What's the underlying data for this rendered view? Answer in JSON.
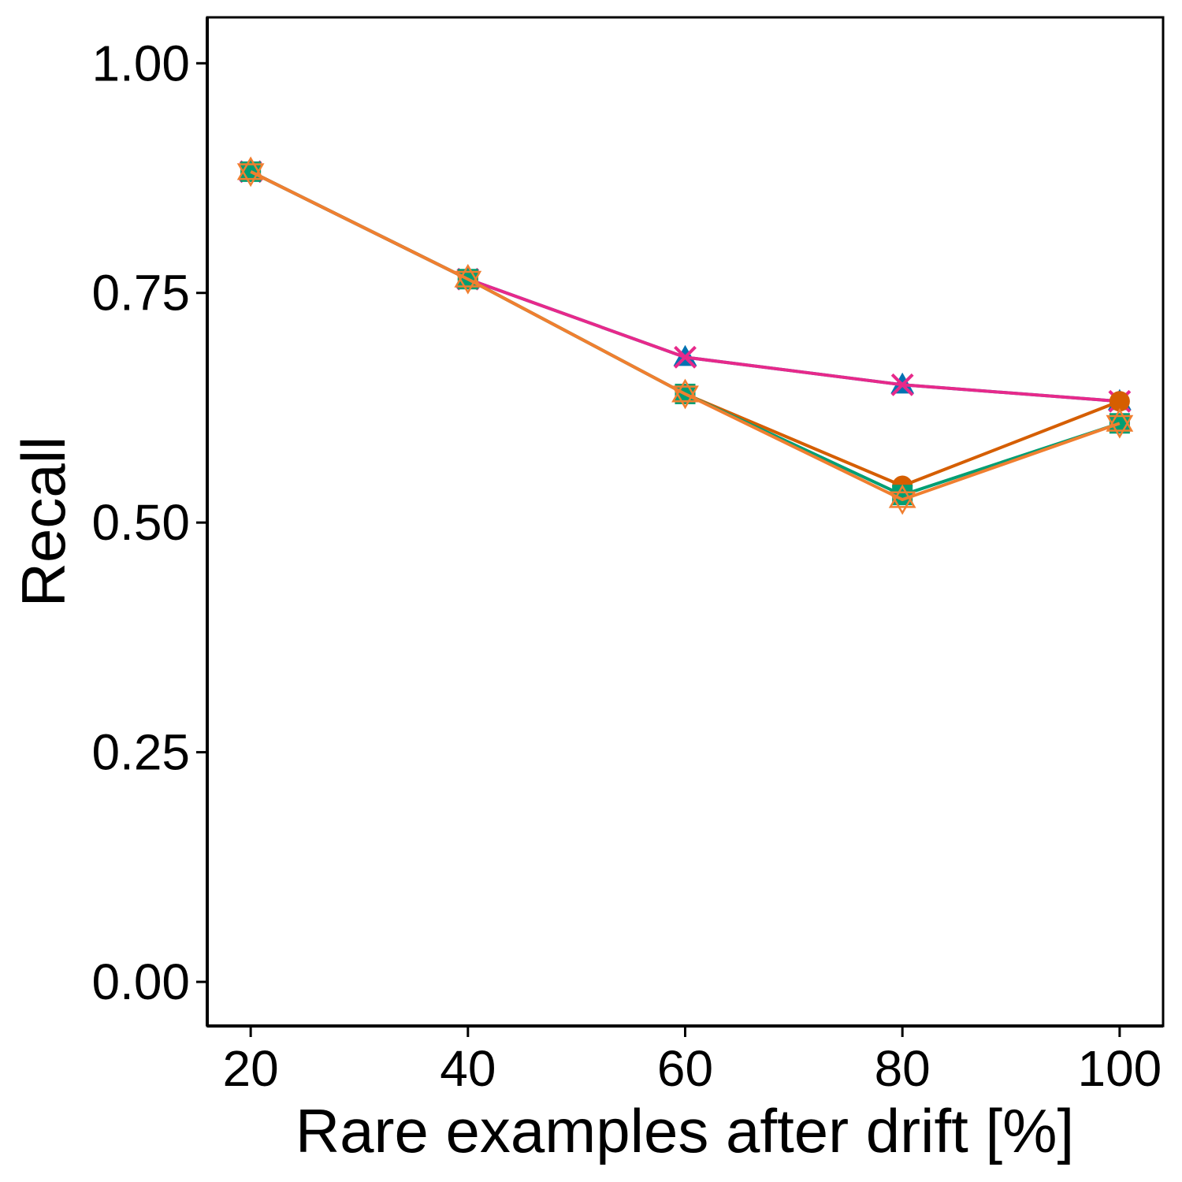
{
  "chart_data": {
    "type": "line",
    "xlabel": "Rare examples after drift [%]",
    "ylabel": "Recall",
    "x": [
      20,
      40,
      60,
      80,
      100
    ],
    "xticks": [
      "20",
      "40",
      "60",
      "80",
      "100"
    ],
    "yticks": [
      "0.00",
      "0.25",
      "0.50",
      "0.75",
      "1.00"
    ],
    "xlim": [
      16,
      104
    ],
    "ylim": [
      -0.048,
      1.05
    ],
    "grid": false,
    "series": [
      {
        "color": "#0072B2",
        "marker": "triangle",
        "values": [
          0.882,
          0.765,
          0.68,
          0.65,
          0.632
        ]
      },
      {
        "color": "#E7298A",
        "marker": "x",
        "values": [
          0.882,
          0.765,
          0.68,
          0.65,
          0.632
        ]
      },
      {
        "color": "#D55E00",
        "marker": "circle",
        "values": [
          0.882,
          0.765,
          0.64,
          0.54,
          0.632
        ]
      },
      {
        "color": "#009E73",
        "marker": "square",
        "values": [
          0.882,
          0.765,
          0.64,
          0.53,
          0.608
        ]
      },
      {
        "color": "#F07F30",
        "marker": "star",
        "values": [
          0.882,
          0.765,
          0.64,
          0.525,
          0.608
        ]
      }
    ]
  }
}
